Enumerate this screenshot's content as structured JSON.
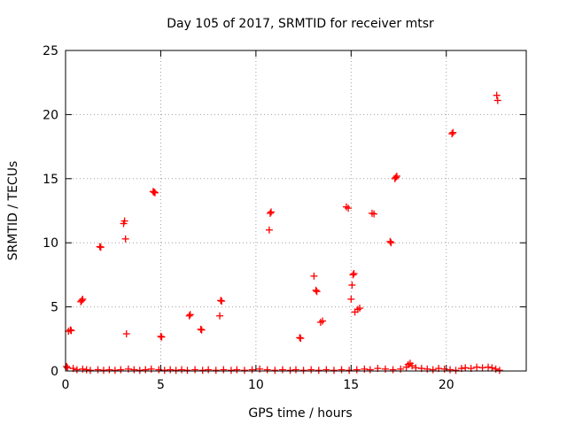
{
  "chart_data": {
    "type": "scatter",
    "title": "Day 105 of 2017, SRMTID for receiver mtsr",
    "xlabel": "GPS time / hours",
    "ylabel": "SRMTID / TECUs",
    "xlim": [
      0,
      24.2
    ],
    "ylim": [
      0,
      25
    ],
    "x_ticks": [
      0,
      5,
      10,
      15,
      20
    ],
    "y_ticks": [
      0,
      5,
      10,
      15,
      20,
      25
    ],
    "grid": true,
    "marker": "plus",
    "color": "#ff0000",
    "series": [
      {
        "points": [
          [
            0.15,
            3.1
          ],
          [
            0.25,
            3.2
          ],
          [
            0.3,
            3.15
          ],
          [
            0.8,
            5.4
          ],
          [
            0.85,
            5.5
          ],
          [
            0.9,
            5.6
          ],
          [
            1.8,
            9.7
          ],
          [
            1.85,
            9.65
          ],
          [
            3.05,
            11.5
          ],
          [
            3.1,
            11.7
          ],
          [
            3.15,
            10.3
          ],
          [
            3.2,
            2.9
          ],
          [
            4.6,
            14.0
          ],
          [
            4.65,
            13.95
          ],
          [
            4.7,
            13.9
          ],
          [
            5.0,
            2.7
          ],
          [
            5.05,
            2.65
          ],
          [
            6.5,
            4.3
          ],
          [
            6.55,
            4.4
          ],
          [
            7.1,
            3.25
          ],
          [
            7.15,
            3.2
          ],
          [
            8.1,
            4.3
          ],
          [
            8.15,
            5.5
          ],
          [
            8.2,
            5.45
          ],
          [
            10.7,
            11.0
          ],
          [
            10.75,
            12.3
          ],
          [
            10.8,
            12.4
          ],
          [
            12.3,
            2.6
          ],
          [
            12.35,
            2.55
          ],
          [
            13.05,
            7.4
          ],
          [
            13.15,
            6.3
          ],
          [
            13.2,
            6.2
          ],
          [
            13.4,
            3.8
          ],
          [
            13.5,
            3.9
          ],
          [
            14.75,
            12.8
          ],
          [
            14.85,
            12.7
          ],
          [
            15.0,
            5.6
          ],
          [
            15.05,
            6.7
          ],
          [
            15.1,
            7.5
          ],
          [
            15.15,
            7.6
          ],
          [
            15.2,
            4.6
          ],
          [
            15.35,
            4.8
          ],
          [
            15.45,
            4.9
          ],
          [
            16.1,
            12.3
          ],
          [
            16.2,
            12.25
          ],
          [
            17.05,
            10.1
          ],
          [
            17.1,
            10.0
          ],
          [
            17.3,
            15.0
          ],
          [
            17.35,
            15.1
          ],
          [
            17.4,
            15.2
          ],
          [
            20.3,
            18.5
          ],
          [
            20.35,
            18.6
          ],
          [
            22.65,
            21.5
          ],
          [
            22.7,
            21.1
          ],
          [
            0.05,
            0.35
          ],
          [
            0.1,
            0.25
          ],
          [
            0.4,
            0.2
          ],
          [
            0.6,
            0.1
          ],
          [
            0.9,
            0.15
          ],
          [
            1.1,
            0.1
          ],
          [
            1.3,
            0.05
          ],
          [
            1.7,
            0.1
          ],
          [
            2.0,
            0.05
          ],
          [
            2.3,
            0.1
          ],
          [
            2.6,
            0.05
          ],
          [
            2.9,
            0.1
          ],
          [
            3.3,
            0.15
          ],
          [
            3.6,
            0.1
          ],
          [
            3.9,
            0.05
          ],
          [
            4.2,
            0.1
          ],
          [
            4.5,
            0.15
          ],
          [
            4.9,
            0.1
          ],
          [
            5.2,
            0.05
          ],
          [
            5.5,
            0.1
          ],
          [
            5.8,
            0.05
          ],
          [
            6.1,
            0.1
          ],
          [
            6.4,
            0.05
          ],
          [
            6.8,
            0.1
          ],
          [
            7.2,
            0.05
          ],
          [
            7.5,
            0.1
          ],
          [
            7.9,
            0.05
          ],
          [
            8.3,
            0.1
          ],
          [
            8.7,
            0.05
          ],
          [
            9.0,
            0.1
          ],
          [
            9.4,
            0.05
          ],
          [
            9.8,
            0.1
          ],
          [
            10.2,
            0.15
          ],
          [
            10.6,
            0.1
          ],
          [
            11.0,
            0.05
          ],
          [
            11.4,
            0.1
          ],
          [
            11.8,
            0.05
          ],
          [
            12.1,
            0.1
          ],
          [
            12.5,
            0.05
          ],
          [
            12.9,
            0.1
          ],
          [
            13.3,
            0.05
          ],
          [
            13.7,
            0.1
          ],
          [
            14.1,
            0.05
          ],
          [
            14.5,
            0.1
          ],
          [
            14.9,
            0.05
          ],
          [
            15.3,
            0.1
          ],
          [
            15.7,
            0.15
          ],
          [
            16.0,
            0.1
          ],
          [
            16.4,
            0.2
          ],
          [
            16.8,
            0.15
          ],
          [
            17.2,
            0.1
          ],
          [
            17.6,
            0.15
          ],
          [
            17.9,
            0.3
          ],
          [
            18.0,
            0.5
          ],
          [
            18.1,
            0.6
          ],
          [
            18.2,
            0.4
          ],
          [
            18.4,
            0.25
          ],
          [
            18.7,
            0.2
          ],
          [
            19.0,
            0.15
          ],
          [
            19.3,
            0.1
          ],
          [
            19.6,
            0.2
          ],
          [
            19.9,
            0.15
          ],
          [
            20.2,
            0.1
          ],
          [
            20.5,
            0.05
          ],
          [
            20.8,
            0.2
          ],
          [
            21.0,
            0.25
          ],
          [
            21.3,
            0.2
          ],
          [
            21.6,
            0.3
          ],
          [
            21.9,
            0.25
          ],
          [
            22.2,
            0.3
          ],
          [
            22.4,
            0.25
          ],
          [
            22.6,
            0.15
          ],
          [
            22.8,
            0.05
          ]
        ]
      }
    ]
  }
}
